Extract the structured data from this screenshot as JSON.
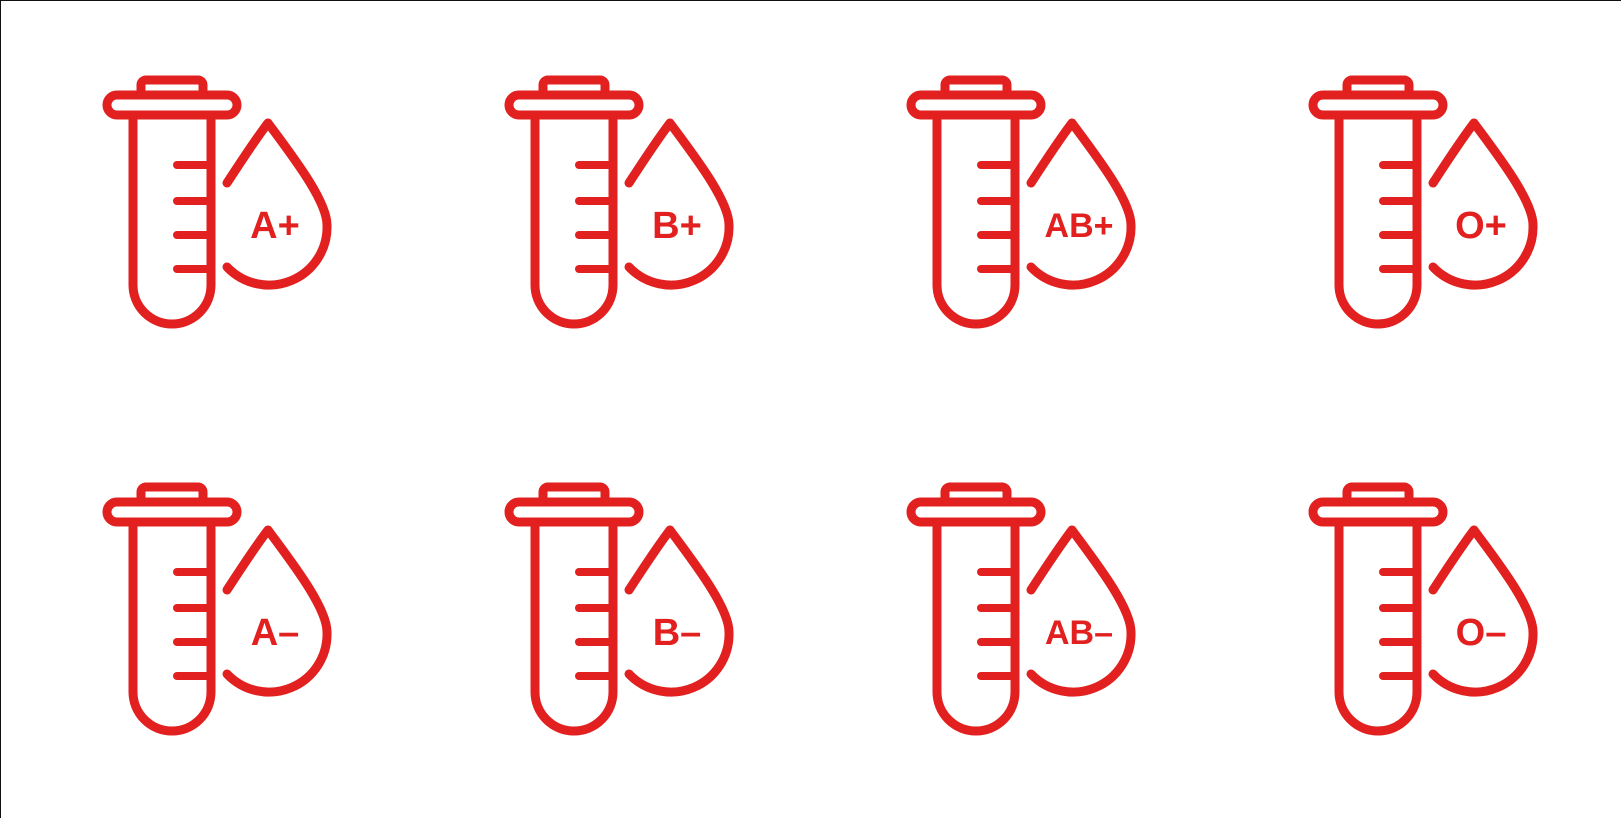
{
  "colors": {
    "icon_red": "#e1201f",
    "background": "#ffffff"
  },
  "icons": [
    {
      "name": "blood-type-a-positive",
      "label": "A+"
    },
    {
      "name": "blood-type-b-positive",
      "label": "B+"
    },
    {
      "name": "blood-type-ab-positive",
      "label": "AB+"
    },
    {
      "name": "blood-type-o-positive",
      "label": "O+"
    },
    {
      "name": "blood-type-a-negative",
      "label": "A–"
    },
    {
      "name": "blood-type-b-negative",
      "label": "B–"
    },
    {
      "name": "blood-type-ab-negative",
      "label": "AB–"
    },
    {
      "name": "blood-type-o-negative",
      "label": "O–"
    }
  ]
}
